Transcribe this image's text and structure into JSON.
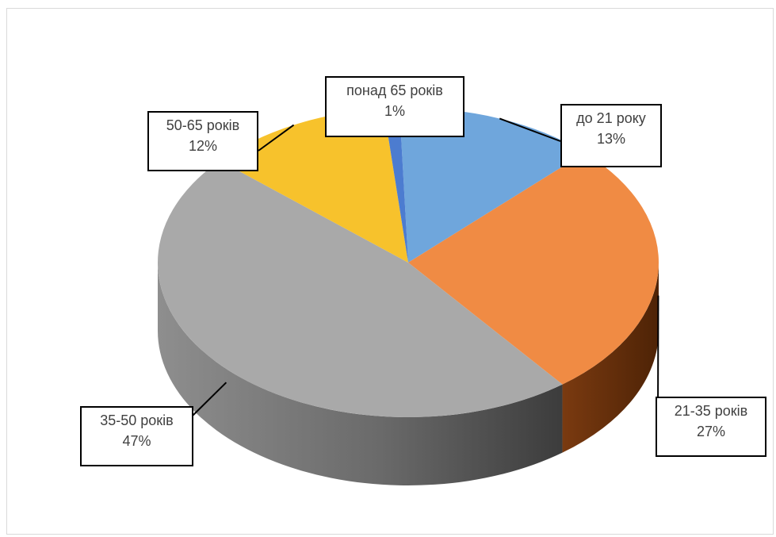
{
  "chart_data": {
    "type": "pie",
    "title": "",
    "style": "3d",
    "slices": [
      {
        "label": "до 21 року",
        "percent_text": "13%",
        "value": 13,
        "color": "#5b9bd5",
        "color_light": "#6fa6dc",
        "color_dark": "#2e5f91"
      },
      {
        "label": "21-35 років",
        "percent_text": "27%",
        "value": 27,
        "color": "#ed7d31",
        "color_light": "#f08b44",
        "color_dark": "#9c4a14"
      },
      {
        "label": "35-50 років",
        "percent_text": "47%",
        "value": 47,
        "color": "#a5a5a5",
        "color_light": "#a9a9a9",
        "color_dark": "#5a5a5a"
      },
      {
        "label": "50-65 років",
        "percent_text": "12%",
        "value": 12,
        "color": "#ffc000",
        "color_light": "#f7c22c",
        "color_dark": "#a67c00"
      },
      {
        "label": "понад 65 років",
        "percent_text": "1%",
        "value": 1,
        "color": "#4472c4",
        "color_light": "#4c7cd0",
        "color_dark": "#2a4a86"
      }
    ]
  }
}
